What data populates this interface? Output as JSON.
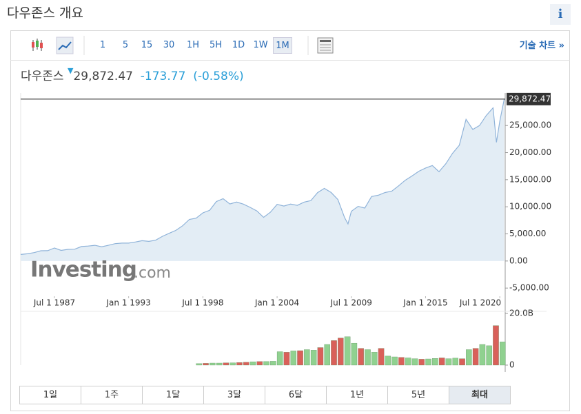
{
  "header": {
    "title": "다우존스 개요",
    "info": "i"
  },
  "toolbar": {
    "intervals": [
      "1",
      "5",
      "15",
      "30",
      "1H",
      "5H",
      "1D",
      "1W",
      "1M"
    ],
    "active_interval": 8,
    "technical_chart": "기술 차트 »"
  },
  "quote": {
    "name": "다우존스",
    "price": "29,872.47",
    "change": "-173.77",
    "change_pct": "(-0.58%)"
  },
  "chart_data": [
    {
      "type": "area",
      "color": "#8fb3d9",
      "fill": "#e3edf5",
      "watermark": [
        "Investing",
        ".com"
      ],
      "x": [
        1985.0,
        1985.5,
        1986.0,
        1986.5,
        1987.0,
        1987.5,
        1988.0,
        1988.5,
        1989.0,
        1989.5,
        1990.0,
        1990.5,
        1991.0,
        1991.5,
        1992.0,
        1992.5,
        1993.0,
        1993.5,
        1994.0,
        1994.5,
        1995.0,
        1995.5,
        1996.0,
        1996.5,
        1997.0,
        1997.5,
        1998.0,
        1998.5,
        1999.0,
        1999.5,
        2000.0,
        2000.5,
        2001.0,
        2001.5,
        2002.0,
        2002.5,
        2003.0,
        2003.5,
        2004.0,
        2004.5,
        2005.0,
        2005.5,
        2006.0,
        2006.5,
        2007.0,
        2007.5,
        2008.0,
        2008.5,
        2009.0,
        2009.25,
        2009.5,
        2010.0,
        2010.5,
        2011.0,
        2011.5,
        2012.0,
        2012.5,
        2013.0,
        2013.5,
        2014.0,
        2014.5,
        2015.0,
        2015.5,
        2016.0,
        2016.5,
        2017.0,
        2017.5,
        2018.0,
        2018.5,
        2019.0,
        2019.5,
        2020.0,
        2020.25,
        2020.5,
        2020.83
      ],
      "values": [
        1200,
        1330,
        1550,
        1890,
        1900,
        2400,
        1950,
        2140,
        2170,
        2660,
        2750,
        2900,
        2630,
        2900,
        3200,
        3300,
        3300,
        3500,
        3750,
        3620,
        3830,
        4550,
        5100,
        5650,
        6500,
        7670,
        7900,
        8880,
        9350,
        10970,
        11500,
        10520,
        10880,
        10500,
        9900,
        9240,
        8050,
        8990,
        10450,
        10140,
        10500,
        10270,
        10860,
        11150,
        12620,
        13400,
        12650,
        11350,
        8000,
        6850,
        9170,
        10070,
        9770,
        11890,
        12140,
        12630,
        12880,
        13860,
        14910,
        15700,
        16560,
        17160,
        17620,
        16470,
        17930,
        19860,
        21350,
        26150,
        24270,
        25000,
        26860,
        28250,
        21900,
        25810,
        29872
      ],
      "last_value": 29872.47,
      "last_label": "29,872.47",
      "xlim": [
        1985.0,
        2020.9
      ],
      "ylim": [
        -6500,
        31000
      ],
      "xticks": [
        {
          "value": 1987.5,
          "label": "Jul 1 1987"
        },
        {
          "value": 1993.0,
          "label": "Jan 1 1993"
        },
        {
          "value": 1998.5,
          "label": "Jul 1 1998"
        },
        {
          "value": 2004.0,
          "label": "Jan 1 2004"
        },
        {
          "value": 2009.5,
          "label": "Jul 1 2009"
        },
        {
          "value": 2015.0,
          "label": "Jan 1 2015"
        },
        {
          "value": 2020.5,
          "label": "Jul 1 2020"
        }
      ],
      "yticks": [
        {
          "value": -5000,
          "label": "-5,000.00"
        },
        {
          "value": 0,
          "label": "0.00"
        },
        {
          "value": 5000,
          "label": "5,000.00"
        },
        {
          "value": 10000,
          "label": "10,000.00"
        },
        {
          "value": 15000,
          "label": "15,000.00"
        },
        {
          "value": 20000,
          "label": "20,000.00"
        },
        {
          "value": 25000,
          "label": "25,000.00"
        }
      ]
    },
    {
      "type": "bar",
      "x": [
        1998.0,
        1998.5,
        1999.0,
        1999.5,
        2000.0,
        2000.5,
        2001.0,
        2001.5,
        2002.0,
        2002.5,
        2003.0,
        2003.5,
        2004.0,
        2004.5,
        2005.0,
        2005.5,
        2006.0,
        2006.5,
        2007.0,
        2007.5,
        2008.0,
        2008.5,
        2009.0,
        2009.5,
        2010.0,
        2010.5,
        2011.0,
        2011.5,
        2012.0,
        2012.5,
        2013.0,
        2013.5,
        2014.0,
        2014.5,
        2015.0,
        2015.5,
        2016.0,
        2016.5,
        2017.0,
        2017.5,
        2018.0,
        2018.5,
        2019.0,
        2019.5,
        2020.0,
        2020.5
      ],
      "values": [
        600000000,
        700000000,
        800000000,
        800000000,
        900000000,
        900000000,
        1000000000,
        1100000000,
        1300000000,
        1400000000,
        1400000000,
        1500000000,
        5200000000,
        5000000000,
        5500000000,
        5600000000,
        6000000000,
        5800000000,
        6800000000,
        8000000000,
        9500000000,
        10500000000,
        11000000000,
        8500000000,
        6500000000,
        6000000000,
        5000000000,
        6500000000,
        3500000000,
        3200000000,
        3000000000,
        2800000000,
        2500000000,
        2300000000,
        2400000000,
        2600000000,
        2800000000,
        2500000000,
        2700000000,
        2500000000,
        6000000000,
        6500000000,
        8000000000,
        7500000000,
        15300000000,
        9000000000
      ],
      "colors": [
        "#90d190",
        "#d9605a",
        "#90d190",
        "#90d190",
        "#d9605a",
        "#90d190",
        "#d9605a",
        "#d9605a",
        "#90d190",
        "#d9605a",
        "#90d190",
        "#90d190",
        "#90d190",
        "#d9605a",
        "#90d190",
        "#d9605a",
        "#90d190",
        "#90d190",
        "#d9605a",
        "#90d190",
        "#d9605a",
        "#d9605a",
        "#90d190",
        "#90d190",
        "#d9605a",
        "#90d190",
        "#90d190",
        "#d9605a",
        "#90d190",
        "#90d190",
        "#d9605a",
        "#90d190",
        "#90d190",
        "#d9605a",
        "#90d190",
        "#90d190",
        "#d9605a",
        "#90d190",
        "#90d190",
        "#d9605a",
        "#90d190",
        "#d9605a",
        "#90d190",
        "#90d190",
        "#d9605a",
        "#90d190"
      ],
      "xlim": [
        1985.0,
        2020.9
      ],
      "ylim": [
        0,
        20000000000
      ],
      "yticks": [
        0,
        {
          "value": 20000000000,
          "label": "20.0B"
        }
      ]
    }
  ],
  "ranges": {
    "buttons": [
      "1일",
      "1주",
      "1달",
      "3달",
      "6달",
      "1년",
      "5년",
      "최대"
    ],
    "active": 7
  }
}
